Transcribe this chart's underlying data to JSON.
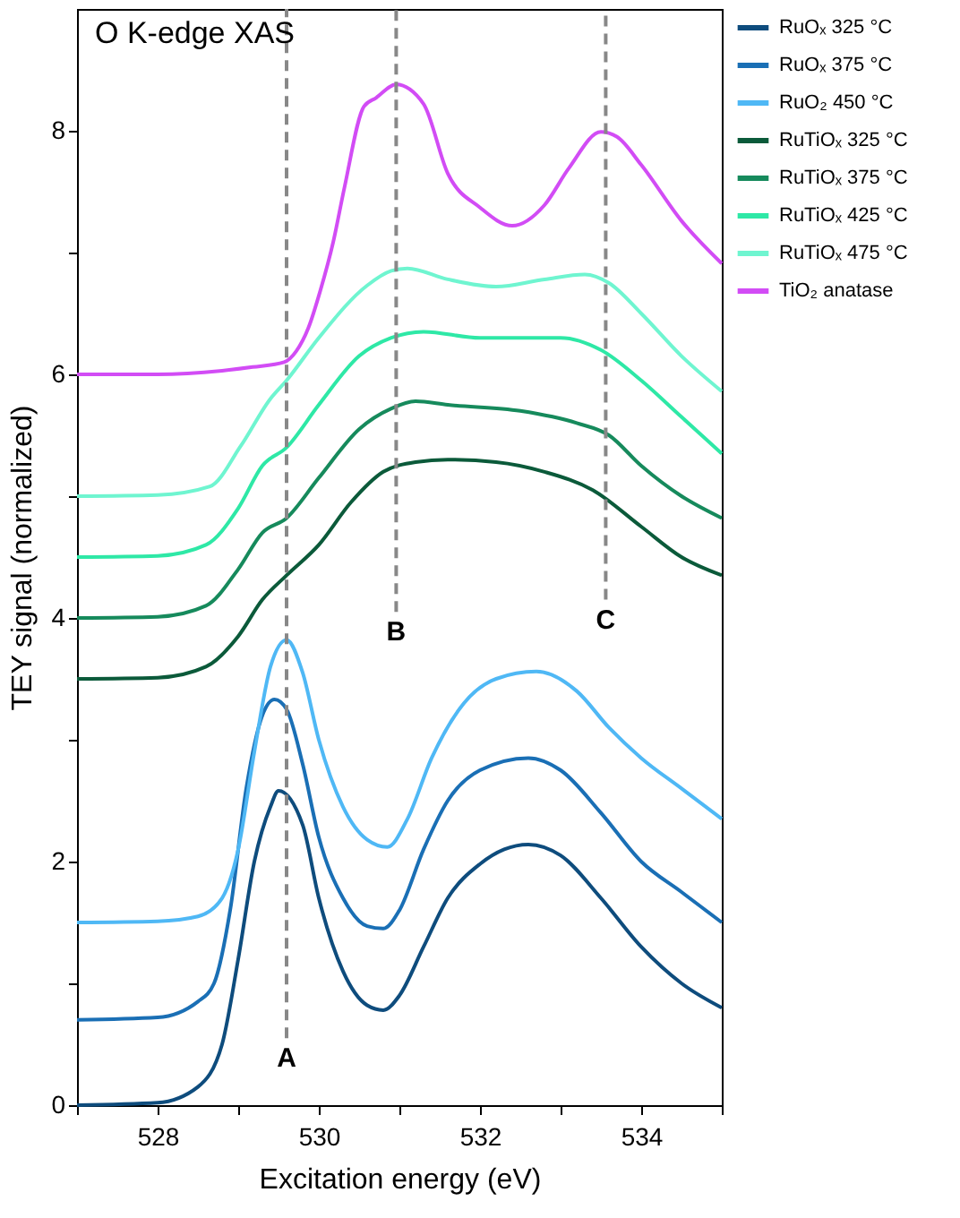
{
  "chart_data": {
    "type": "line",
    "title": "O K-edge XAS",
    "xlabel": "Excitation energy (eV)",
    "ylabel": "TEY signal (normalized)",
    "xlim": [
      527,
      535
    ],
    "xticks": [
      {
        "value": 527,
        "label": null
      },
      528,
      {
        "value": 529,
        "label": null
      },
      530,
      {
        "value": 531,
        "label": null
      },
      532,
      {
        "value": 533,
        "label": null
      },
      534,
      {
        "value": 535,
        "label": null
      }
    ],
    "ylim": [
      0,
      9
    ],
    "yticks": [
      0,
      {
        "value": 1,
        "label": null
      },
      2,
      {
        "value": 3,
        "label": null
      },
      4,
      {
        "value": 5,
        "label": null
      },
      6,
      {
        "value": 7,
        "label": null
      },
      8
    ],
    "grid": false,
    "legend": "right",
    "marker": "none",
    "line_style": "solid",
    "series": [
      {
        "name": "RuOₓ 325 °C",
        "color": "#0e4c7d",
        "x": [
          527,
          528,
          528.5,
          528.8,
          529.0,
          529.2,
          529.4,
          529.5,
          529.8,
          530.0,
          530.3,
          530.6,
          530.8,
          531.0,
          531.3,
          531.6,
          532.0,
          532.3,
          532.6,
          533.0,
          533.5,
          534.0,
          534.5,
          535
        ],
        "values": [
          0,
          0.02,
          0.15,
          0.5,
          1.2,
          2.0,
          2.45,
          2.58,
          2.3,
          1.7,
          1.1,
          0.82,
          0.78,
          0.9,
          1.3,
          1.7,
          1.98,
          2.1,
          2.14,
          2.05,
          1.7,
          1.3,
          1.0,
          0.8
        ]
      },
      {
        "name": "RuOₓ 375 °C",
        "color": "#1a6fb5",
        "x": [
          527,
          528,
          528.5,
          528.7,
          528.9,
          529.1,
          529.3,
          529.45,
          529.6,
          529.8,
          530.0,
          530.3,
          530.6,
          530.8,
          531.0,
          531.3,
          531.6,
          532.0,
          532.6,
          533.0,
          533.5,
          534.0,
          534.5,
          535
        ],
        "values": [
          0.7,
          0.72,
          0.85,
          1.0,
          1.6,
          2.6,
          3.2,
          3.33,
          3.25,
          2.8,
          2.2,
          1.7,
          1.47,
          1.45,
          1.6,
          2.1,
          2.5,
          2.75,
          2.85,
          2.75,
          2.4,
          2.0,
          1.75,
          1.5
        ]
      },
      {
        "name": "RuO₂ 450 °C",
        "color": "#4fb8f5",
        "x": [
          527,
          528,
          528.5,
          528.8,
          529.0,
          529.2,
          529.4,
          529.6,
          529.8,
          530.0,
          530.3,
          530.6,
          530.85,
          531.1,
          531.4,
          531.8,
          532.2,
          532.7,
          533.2,
          533.6,
          534.0,
          534.5,
          535
        ],
        "values": [
          1.5,
          1.51,
          1.55,
          1.7,
          2.1,
          2.9,
          3.6,
          3.82,
          3.55,
          3.0,
          2.45,
          2.18,
          2.12,
          2.35,
          2.85,
          3.3,
          3.5,
          3.56,
          3.4,
          3.1,
          2.85,
          2.6,
          2.35
        ]
      },
      {
        "name": "RuTiOₓ 325 °C",
        "color": "#0b5a3a",
        "x": [
          527,
          528,
          528.6,
          529.0,
          529.3,
          529.6,
          530.0,
          530.4,
          530.8,
          531.2,
          531.6,
          532.2,
          532.8,
          533.4,
          534.0,
          534.5,
          535
        ],
        "values": [
          3.5,
          3.51,
          3.6,
          3.85,
          4.15,
          4.35,
          4.6,
          4.95,
          5.2,
          5.28,
          5.3,
          5.28,
          5.2,
          5.05,
          4.75,
          4.5,
          4.35
        ]
      },
      {
        "name": "RuTiOₓ 375 °C",
        "color": "#168a5c",
        "x": [
          527,
          528,
          528.6,
          529.0,
          529.3,
          529.6,
          530.0,
          530.5,
          530.9,
          531.2,
          531.6,
          532.5,
          533.2,
          533.6,
          534.0,
          534.5,
          535
        ],
        "values": [
          4.0,
          4.01,
          4.1,
          4.4,
          4.7,
          4.82,
          5.15,
          5.55,
          5.72,
          5.78,
          5.75,
          5.7,
          5.6,
          5.5,
          5.25,
          5.0,
          4.82
        ]
      },
      {
        "name": "RuTiOₓ 425 °C",
        "color": "#2ee8a6",
        "x": [
          527,
          528,
          528.6,
          529.0,
          529.3,
          529.6,
          530.0,
          530.5,
          530.9,
          531.3,
          532.0,
          533.0,
          533.5,
          534.0,
          534.5,
          535
        ],
        "values": [
          4.5,
          4.51,
          4.6,
          4.9,
          5.25,
          5.4,
          5.75,
          6.15,
          6.3,
          6.35,
          6.3,
          6.3,
          6.2,
          5.95,
          5.65,
          5.35
        ]
      },
      {
        "name": "RuTiOₓ 475 °C",
        "color": "#6ff5d0",
        "x": [
          527,
          528,
          528.65,
          529.03,
          529.4,
          529.6,
          530.0,
          530.6,
          530.9,
          531.1,
          531.6,
          532.2,
          532.8,
          533.3,
          533.6,
          534.0,
          534.5,
          535
        ],
        "values": [
          5.0,
          5.01,
          5.08,
          5.41,
          5.8,
          5.95,
          6.3,
          6.73,
          6.85,
          6.87,
          6.78,
          6.72,
          6.78,
          6.82,
          6.75,
          6.5,
          6.15,
          5.86
        ]
      },
      {
        "name": "TiO₂ anatase",
        "color": "#d24cf5",
        "x": [
          527,
          528,
          528.8,
          529.18,
          529.57,
          529.72,
          529.87,
          530.02,
          530.18,
          530.32,
          530.56,
          530.71,
          530.96,
          531.3,
          531.6,
          532.0,
          532.4,
          532.8,
          533.1,
          533.5,
          533.7,
          534.0,
          534.5,
          535
        ],
        "values": [
          6.0,
          6.0,
          6.03,
          6.06,
          6.1,
          6.19,
          6.38,
          6.69,
          7.09,
          7.54,
          8.2,
          8.27,
          8.38,
          8.22,
          7.65,
          7.37,
          7.22,
          7.39,
          7.69,
          7.99,
          7.95,
          7.72,
          7.26,
          6.91
        ]
      }
    ],
    "ref_lines": [
      {
        "axis": "x",
        "value": 529.6,
        "color": "#888888",
        "line_style": "dashed"
      },
      {
        "axis": "x",
        "value": 530.96,
        "color": "#888888",
        "line_style": "dashed"
      },
      {
        "axis": "x",
        "value": 533.56,
        "color": "#888888",
        "line_style": "dashed"
      }
    ],
    "annotations": [
      {
        "text": "A",
        "x": 529.6,
        "y": 0.55
      },
      {
        "text": "B",
        "x": 530.96,
        "y": 4.05
      },
      {
        "text": "C",
        "x": 533.56,
        "y": 4.15
      }
    ]
  }
}
